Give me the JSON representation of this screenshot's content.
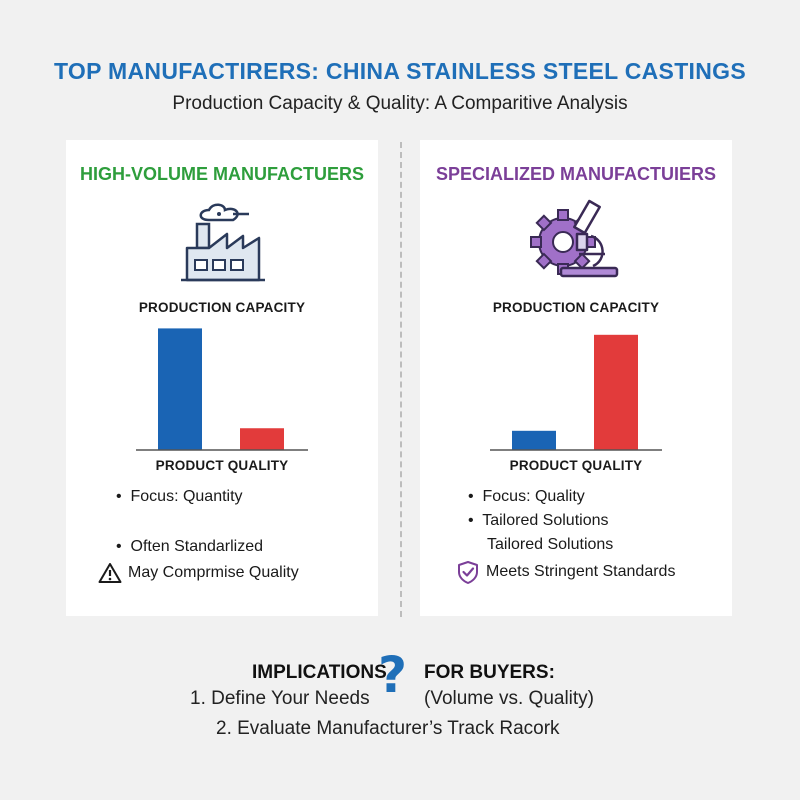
{
  "header": {
    "title": "TOP MANUFACTIRERS: CHINA STAINLESS STEEL CASTINGS",
    "subtitle": "Production Capacity & Quality: A Comparitive Analysis"
  },
  "colors": {
    "title_blue": "#1f6fb8",
    "high_volume_green": "#2e9e3c",
    "specialized_purple": "#7b3f98",
    "capacity_bar_blue": "#1a64b4",
    "quality_bar_red": "#e23b3b"
  },
  "left_panel": {
    "title": "HIGH-VOLUME MANUFACTUERS",
    "icon": "factory-icon",
    "capacity_label": "PRODUCTION CAPACITY",
    "quality_label": "PRODUCT QUALITY",
    "bullets": [
      "Focus: Quantity",
      "Often Standarlized"
    ],
    "warning_icon": "warning-icon",
    "warning_text": "May Comprmise Quality"
  },
  "right_panel": {
    "title": "SPECIALIZED MANUFACTUIERS",
    "icon": "gear-microscope-icon",
    "capacity_label": "PRODUCTION CAPACITY",
    "quality_label": "PRODUCT QUALITY",
    "bullets": [
      "Focus: Quality",
      "Tailored Solutions"
    ],
    "extra_line": "Tailored Solutions",
    "check_icon": "shield-check-icon",
    "check_text": "Meets Stringent Standards"
  },
  "chart_data": [
    {
      "type": "bar",
      "categories": [
        "Production Capacity",
        "Product Quality"
      ],
      "values": [
        0.95,
        0.17
      ],
      "ylim": [
        0,
        1
      ],
      "colors": [
        "#1a64b4",
        "#e23b3b"
      ]
    },
    {
      "type": "bar",
      "categories": [
        "Production Capacity",
        "Product Quality"
      ],
      "values": [
        0.15,
        0.9
      ],
      "ylim": [
        0,
        1
      ],
      "colors": [
        "#1a64b4",
        "#e23b3b"
      ]
    }
  ],
  "implications": {
    "heading_left": "IMPLICATIONS",
    "question_icon": "question-mark-icon",
    "heading_right": "FOR BUYERS:",
    "item1_left": "1. Define Your Needs",
    "item1_right": "(Volume vs. Quality)",
    "item2": "2. Evaluate Manufacturer’s Track Racork"
  }
}
